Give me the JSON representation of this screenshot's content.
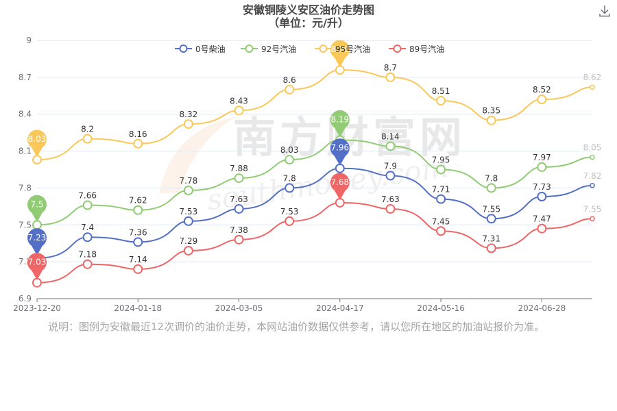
{
  "title": "安徽铜陵义安区油价走势图",
  "subtitle": "（单位：元/升）",
  "watermark": "南方财富网",
  "watermark_url": "southmoney.com",
  "note": "说明：图例为安徽最近12次调价的油价走势，本网站油价数据仅供参考，请以您所在地区的加油站报价为准。",
  "colors": {
    "0号柴油": "#5470c6",
    "92号汽油": "#91cc75",
    "95号汽油": "#fac858",
    "89号汽油": "#ee6666",
    "axis": "#6e7079",
    "grid": "#e0e6f1"
  },
  "chart_data": {
    "type": "line",
    "title": "安徽铜陵义安区油价走势图",
    "subtitle": "（单位：元/升）",
    "ylim": [
      6.9,
      9
    ],
    "yticks": [
      "6.9",
      "7.2",
      "7.5",
      "7.8",
      "8.1",
      "8.4",
      "8.7",
      "9"
    ],
    "xticks": [
      "2023-12-20",
      "2024-01-18",
      "2024-03-05",
      "2024-04-17",
      "2024-05-16",
      "2024-06-28"
    ],
    "x": [
      "2023-12-20",
      "2024-01-03",
      "2024-01-18",
      "2024-02-01",
      "2024-03-05",
      "2024-03-19",
      "2024-04-17",
      "2024-05-01",
      "2024-05-16",
      "2024-05-30",
      "2024-06-28",
      "2024-07-12"
    ],
    "legend_position": "top-center",
    "grid": true,
    "series": [
      {
        "name": "0号柴油",
        "values": [
          7.23,
          7.4,
          7.36,
          7.53,
          7.63,
          7.8,
          7.96,
          7.9,
          7.71,
          7.55,
          7.73,
          7.82
        ],
        "max": 7.96,
        "min": 7.23
      },
      {
        "name": "92号汽油",
        "values": [
          7.5,
          7.66,
          7.62,
          7.78,
          7.88,
          8.03,
          8.19,
          8.14,
          7.95,
          7.8,
          7.97,
          8.05
        ],
        "max": 8.19,
        "min": 7.5
      },
      {
        "name": "95号汽油",
        "values": [
          8.03,
          8.2,
          8.16,
          8.32,
          8.43,
          8.6,
          8.76,
          8.7,
          8.51,
          8.35,
          8.52,
          8.62
        ],
        "max": 8.76,
        "min": 8.03
      },
      {
        "name": "89号汽油",
        "values": [
          7.03,
          7.18,
          7.14,
          7.29,
          7.38,
          7.53,
          7.68,
          7.63,
          7.45,
          7.31,
          7.47,
          7.55
        ],
        "max": 7.68,
        "min": 7.03
      }
    ]
  }
}
